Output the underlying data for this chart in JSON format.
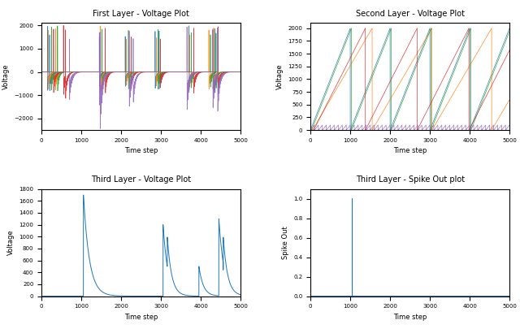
{
  "title_topleft": "First Layer - Voltage Plot",
  "title_topright": "Second Layer - Voltage Plot",
  "title_botleft": "Third Layer - Voltage Plot",
  "title_botright": "Third Layer - Spike Out plot",
  "xlabel": "Time step",
  "ylabel_topleft": "Voltage",
  "ylabel_topright": "Voltage",
  "ylabel_botleft": "Voltage",
  "ylabel_botright": "Spike Out",
  "t_max": 5000,
  "colors": [
    "#1f77b4",
    "#ff7f0e",
    "#2ca02c",
    "#d62728",
    "#9467bd"
  ],
  "layer1_ylim": [
    -2500,
    2100
  ],
  "layer2_ylim": [
    0,
    2100
  ],
  "layer3v_ylim": [
    0,
    1800
  ],
  "layer3s_ylim": [
    0,
    1.1
  ]
}
